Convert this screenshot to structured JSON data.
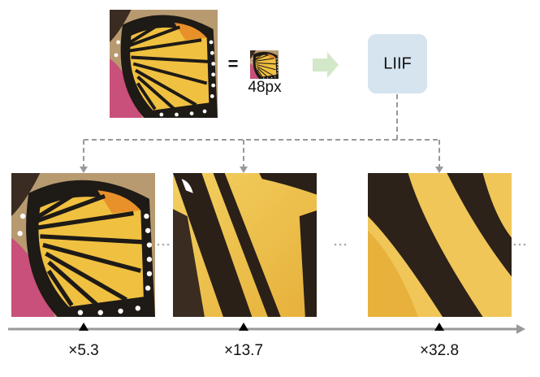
{
  "input": {
    "equals": "=",
    "size_label": "48px"
  },
  "model": {
    "label": "LIIF"
  },
  "outputs": [
    {
      "scale_label": "×5.3"
    },
    {
      "scale_label": "×13.7"
    },
    {
      "scale_label": "×32.8"
    }
  ]
}
